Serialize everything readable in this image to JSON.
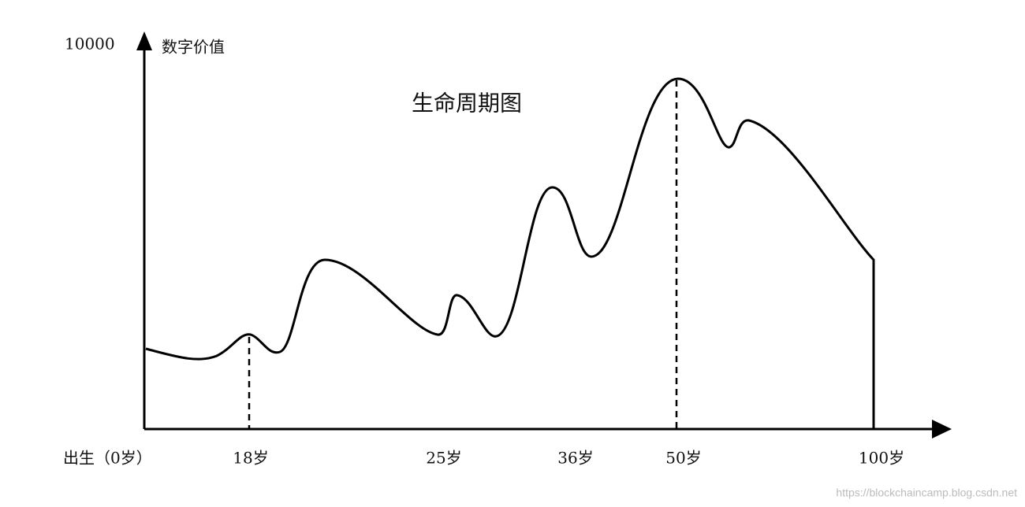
{
  "y_axis": {
    "max_label": "10000",
    "title": "数字价值"
  },
  "title": "生命周期图",
  "x_axis": {
    "labels": [
      "出生（0岁）",
      "18岁",
      "25岁",
      "36岁",
      "50岁",
      "100岁"
    ]
  },
  "watermark": "https://blockchaincamp.blog.csdn.net"
}
